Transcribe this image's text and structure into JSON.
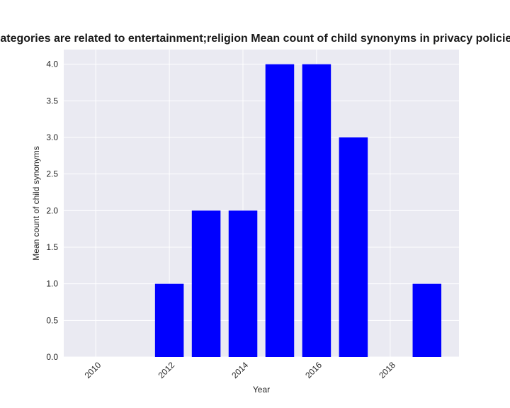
{
  "chart_data": {
    "type": "bar",
    "title": "Categories are related to entertainment;religion Mean count of child synonyms in privacy policies",
    "xlabel": "Year",
    "ylabel": "Mean count of child synonyms",
    "x": [
      2012,
      2013,
      2014,
      2015,
      2016,
      2017,
      2019
    ],
    "values": [
      1,
      2,
      2,
      4,
      4,
      3,
      1
    ],
    "xlim": [
      2009.13,
      2019.87
    ],
    "ylim": [
      0,
      4.2
    ],
    "xticks": [
      "2010",
      "2012",
      "2014",
      "2016",
      "2018"
    ],
    "yticks": [
      "0.0",
      "0.5",
      "1.0",
      "1.5",
      "2.0",
      "2.5",
      "3.0",
      "3.5",
      "4.0"
    ],
    "bar_color": "#0000ff",
    "background_color": "#eaeaf2",
    "grid": true
  }
}
